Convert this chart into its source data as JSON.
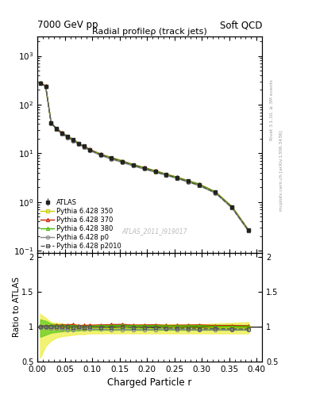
{
  "title_left": "7000 GeV pp",
  "title_right": "Soft QCD",
  "plot_title": "Radial profileρ (track jets)",
  "xlabel": "Charged Particle r",
  "ylabel_bottom": "Ratio to ATLAS",
  "right_label_top": "Rivet 3.1.10, ≥ 3M events",
  "right_label_bottom": "mcplots.cern.ch [arXiv:1306.3436]",
  "watermark": "ATLAS_2011_I919017",
  "r_values": [
    0.005,
    0.015,
    0.025,
    0.035,
    0.045,
    0.055,
    0.065,
    0.075,
    0.085,
    0.095,
    0.115,
    0.135,
    0.155,
    0.175,
    0.195,
    0.215,
    0.235,
    0.255,
    0.275,
    0.295,
    0.325,
    0.355,
    0.385
  ],
  "atlas_y": [
    280,
    240,
    42,
    32,
    26,
    22,
    19,
    16,
    14,
    12,
    9.5,
    8.0,
    6.8,
    5.8,
    5.0,
    4.3,
    3.7,
    3.2,
    2.7,
    2.3,
    1.6,
    0.8,
    0.27
  ],
  "atlas_yerr": [
    20,
    18,
    3,
    2,
    2,
    1.5,
    1.3,
    1.1,
    1.0,
    0.8,
    0.6,
    0.5,
    0.4,
    0.35,
    0.3,
    0.25,
    0.22,
    0.18,
    0.15,
    0.13,
    0.09,
    0.05,
    0.02
  ],
  "p350_y": [
    278,
    238,
    41.5,
    31.5,
    25.5,
    21.5,
    18.5,
    15.8,
    13.7,
    11.8,
    9.3,
    7.8,
    6.7,
    5.7,
    4.9,
    4.2,
    3.65,
    3.15,
    2.65,
    2.25,
    1.58,
    0.79,
    0.265
  ],
  "p370_y": [
    282,
    242,
    42.5,
    32.5,
    26.5,
    22.5,
    19.5,
    16.2,
    14.2,
    12.2,
    9.7,
    8.2,
    7.0,
    5.9,
    5.1,
    4.4,
    3.75,
    3.25,
    2.75,
    2.35,
    1.62,
    0.81,
    0.272
  ],
  "p380_y": [
    281,
    241,
    42.2,
    32.2,
    26.2,
    22.2,
    19.2,
    16.0,
    14.0,
    12.0,
    9.6,
    8.1,
    6.9,
    5.85,
    5.05,
    4.35,
    3.72,
    3.22,
    2.72,
    2.32,
    1.6,
    0.8,
    0.268
  ],
  "p0_y": [
    276,
    236,
    41.0,
    31.0,
    25.0,
    21.0,
    18.0,
    15.5,
    13.4,
    11.5,
    9.1,
    7.6,
    6.5,
    5.5,
    4.75,
    4.1,
    3.55,
    3.05,
    2.58,
    2.18,
    1.52,
    0.76,
    0.256
  ],
  "p2010_y": [
    279,
    239,
    41.8,
    31.8,
    25.8,
    21.8,
    18.8,
    15.9,
    13.8,
    11.9,
    9.4,
    7.9,
    6.75,
    5.72,
    4.92,
    4.22,
    3.62,
    3.12,
    2.62,
    2.22,
    1.55,
    0.77,
    0.26
  ],
  "color_atlas": "#222222",
  "color_p350": "#cccc00",
  "color_p370": "#cc2200",
  "color_p380": "#44bb00",
  "color_p0": "#888888",
  "color_p2010": "#555555",
  "band_350_lower": [
    0.55,
    0.72,
    0.8,
    0.84,
    0.86,
    0.87,
    0.88,
    0.89,
    0.89,
    0.9,
    0.9,
    0.9,
    0.9,
    0.9,
    0.9,
    0.9,
    0.9,
    0.9,
    0.9,
    0.9,
    0.9,
    0.9,
    0.9
  ],
  "band_350_upper": [
    1.18,
    1.12,
    1.06,
    1.05,
    1.04,
    1.03,
    1.03,
    1.02,
    1.02,
    1.02,
    1.02,
    1.02,
    1.02,
    1.03,
    1.03,
    1.03,
    1.03,
    1.03,
    1.03,
    1.03,
    1.04,
    1.05,
    1.06
  ],
  "band_380_lower": [
    0.85,
    0.88,
    0.91,
    0.92,
    0.93,
    0.94,
    0.94,
    0.94,
    0.95,
    0.95,
    0.95,
    0.95,
    0.95,
    0.95,
    0.95,
    0.95,
    0.95,
    0.95,
    0.95,
    0.95,
    0.95,
    0.95,
    0.95
  ],
  "band_380_upper": [
    1.1,
    1.08,
    1.04,
    1.03,
    1.03,
    1.02,
    1.02,
    1.02,
    1.01,
    1.01,
    1.01,
    1.01,
    1.01,
    1.01,
    1.01,
    1.01,
    1.01,
    1.01,
    1.01,
    1.01,
    1.02,
    1.02,
    1.02
  ]
}
